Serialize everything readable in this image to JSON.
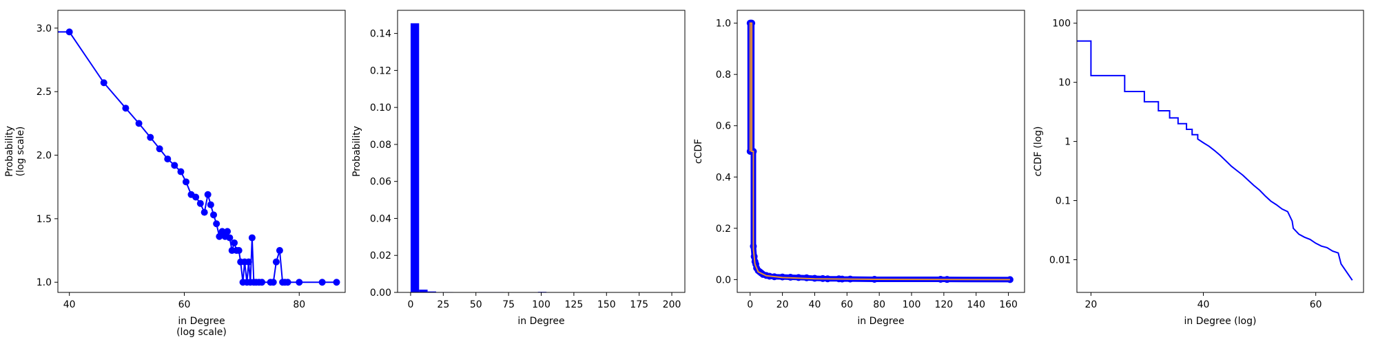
{
  "chart_data": [
    {
      "type": "line",
      "xlabel": [
        "in Degree",
        "(log scale)"
      ],
      "ylabel": [
        "Probability",
        "(log scale)"
      ],
      "xlim": [
        38,
        88
      ],
      "ylim": [
        0.92,
        3.14
      ],
      "xticks": [
        40,
        60,
        80
      ],
      "yticks": [
        1.0,
        1.5,
        2.0,
        2.5,
        3.0
      ],
      "ytick_labels": [
        "1.0",
        "1.5",
        "2.0",
        "2.5",
        "3.0"
      ],
      "color": "#0000ff",
      "markers": true,
      "x": [
        38,
        40,
        46,
        49.8,
        52.1,
        54.1,
        55.7,
        57.1,
        58.3,
        59.4,
        60.3,
        61.2,
        62.0,
        62.8,
        63.5,
        64.1,
        64.6,
        65.1,
        65.6,
        66.1,
        66.6,
        67.1,
        67.5,
        67.9,
        68.3,
        68.7,
        69.1,
        69.5,
        69.8,
        70.2,
        70.5,
        70.9,
        71.2,
        71.5,
        71.8,
        72.1,
        72.5,
        73.0,
        73.5,
        75.0,
        75.5,
        76.0,
        76.6,
        77.1,
        77.5,
        78.0,
        80.0,
        84.0,
        86.5
      ],
      "y": [
        2.97,
        2.97,
        2.57,
        2.37,
        2.25,
        2.14,
        2.05,
        1.97,
        1.92,
        1.87,
        1.79,
        1.69,
        1.67,
        1.62,
        1.55,
        1.69,
        1.61,
        1.53,
        1.46,
        1.36,
        1.4,
        1.36,
        1.4,
        1.35,
        1.25,
        1.31,
        1.25,
        1.25,
        1.16,
        1.0,
        1.16,
        1.0,
        1.16,
        1.0,
        1.35,
        1.0,
        1.0,
        1.0,
        1.0,
        1.0,
        1.0,
        1.16,
        1.25,
        1.0,
        1.0,
        1.0,
        1.0,
        1.0,
        1.0
      ]
    },
    {
      "type": "bar",
      "xlabel": [
        "in Degree"
      ],
      "ylabel": [
        "Probability"
      ],
      "xlim": [
        -10,
        210
      ],
      "ylim": [
        0,
        0.1525
      ],
      "xticks": [
        0,
        25,
        50,
        75,
        100,
        125,
        150,
        175,
        200
      ],
      "yticks": [
        0,
        0.02,
        0.04,
        0.06,
        0.08,
        0.1,
        0.12,
        0.14
      ],
      "ytick_labels": [
        "0.00",
        "0.02",
        "0.04",
        "0.06",
        "0.08",
        "0.10",
        "0.12",
        "0.14"
      ],
      "color": "#0000ff",
      "bin_edges": [
        0,
        6.5,
        13,
        19.5,
        26,
        32.5,
        39,
        45.5,
        52,
        58.5,
        65,
        71.5,
        78,
        84.5,
        91,
        97.5,
        104
      ],
      "values": [
        0.1455,
        0.0015,
        0.0005,
        0.0002,
        0.0002,
        0.0001,
        0.0001,
        0.0001,
        0.0002,
        0.0002,
        0.0002,
        0.0001,
        0.0001,
        0.0001,
        0.0001,
        0.0003
      ]
    },
    {
      "type": "line",
      "xlabel": [
        "in Degree"
      ],
      "ylabel": [
        "cCDF"
      ],
      "xlim": [
        -8,
        170
      ],
      "ylim": [
        -0.05,
        1.05
      ],
      "xticks": [
        0,
        20,
        40,
        60,
        80,
        100,
        120,
        140,
        160
      ],
      "yticks": [
        0,
        0.2,
        0.4,
        0.6,
        0.8,
        1.0
      ],
      "ytick_labels": [
        "0.0",
        "0.2",
        "0.4",
        "0.6",
        "0.8",
        "1.0"
      ],
      "color": "#0000ff",
      "fit_color": "#e8922e",
      "x": [
        0,
        0,
        0.5,
        1,
        1,
        1.5,
        2,
        2,
        2.5,
        3,
        3.5,
        4,
        5,
        6,
        7,
        8,
        10,
        12,
        15,
        20,
        25,
        30,
        35,
        40,
        45,
        48,
        55,
        57,
        62,
        77,
        118,
        122,
        161
      ],
      "y": [
        0.5,
        1.0,
        1.0,
        1.0,
        0.5,
        0.5,
        0.5,
        0.13,
        0.09,
        0.07,
        0.06,
        0.045,
        0.035,
        0.03,
        0.025,
        0.02,
        0.016,
        0.013,
        0.011,
        0.01,
        0.009,
        0.008,
        0.007,
        0.005,
        0.004,
        0.003,
        0.003,
        0.002,
        0.002,
        0.001,
        0.001,
        0.0005,
        0.0
      ],
      "fit_x": [
        0,
        0,
        1,
        1,
        2,
        2,
        3,
        5,
        10,
        20,
        40,
        80,
        161
      ],
      "fit_y": [
        0.5,
        1.0,
        1.0,
        0.5,
        0.5,
        0.12,
        0.06,
        0.03,
        0.015,
        0.008,
        0.003,
        0.001,
        0.0
      ]
    },
    {
      "type": "line",
      "step": true,
      "xlabel": [
        "in Degree (log)"
      ],
      "ylabel": [
        "cCDF (log)"
      ],
      "xlim": [
        17.5,
        68.5
      ],
      "ylim": [
        0.0028,
        165
      ],
      "yscale": "log",
      "xticks": [
        20,
        40,
        60
      ],
      "yticks": [
        0.01,
        0.1,
        1,
        10,
        100
      ],
      "ytick_labels": [
        "0.01",
        "0.1",
        "1",
        "10",
        "100"
      ],
      "color": "#0000ff",
      "x": [
        17.5,
        20,
        20,
        26,
        26,
        29.5,
        29.5,
        32,
        32,
        34,
        34,
        35.5,
        35.5,
        37,
        37,
        38,
        38,
        39,
        39,
        40,
        41,
        42,
        43,
        44,
        45,
        46,
        47,
        48,
        49,
        50,
        51,
        52,
        53,
        54,
        55,
        55.8,
        56,
        57,
        58,
        59,
        60,
        61,
        62,
        63,
        64,
        64.5,
        66.5
      ],
      "y": [
        50,
        50,
        13,
        13,
        7,
        7,
        4.7,
        4.7,
        3.3,
        3.3,
        2.5,
        2.5,
        2.0,
        2.0,
        1.6,
        1.6,
        1.3,
        1.3,
        1.1,
        0.95,
        0.83,
        0.7,
        0.58,
        0.47,
        0.38,
        0.32,
        0.27,
        0.22,
        0.18,
        0.15,
        0.12,
        0.098,
        0.085,
        0.072,
        0.065,
        0.045,
        0.034,
        0.027,
        0.024,
        0.022,
        0.019,
        0.017,
        0.016,
        0.014,
        0.013,
        0.0085,
        0.0045
      ]
    }
  ]
}
